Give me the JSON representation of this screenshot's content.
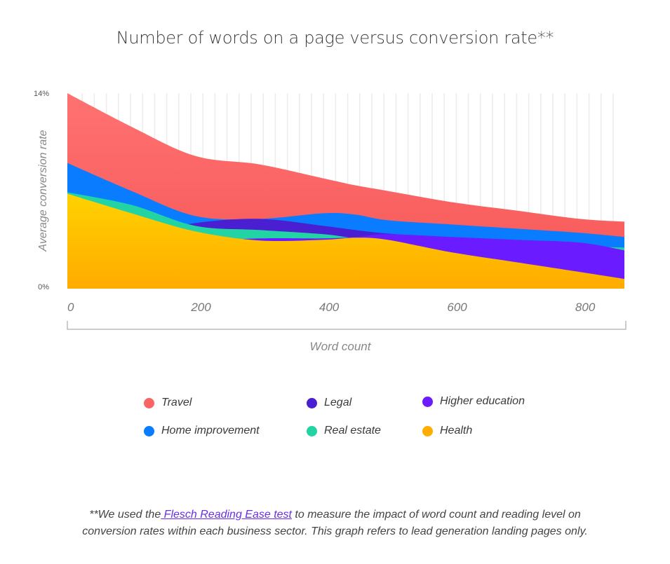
{
  "chart_data": {
    "type": "area",
    "title": "Number of words on a page versus conversion rate**",
    "xlabel": "Word count",
    "ylabel": "Average conversion rate",
    "xlim": [
      0,
      870
    ],
    "ylim": [
      0,
      14
    ],
    "x_ticks": [
      "0",
      "200",
      "400",
      "600",
      "800"
    ],
    "y_ticks": [
      "0%",
      "14%"
    ],
    "grid": "vertical lines",
    "legend_position": "bottom",
    "x": [
      0,
      100,
      200,
      300,
      400,
      450,
      500,
      600,
      700,
      800,
      870
    ],
    "series": [
      {
        "name": "Travel",
        "color": "#fb6565",
        "values": [
          14.0,
          11.6,
          9.5,
          8.9,
          7.9,
          7.4,
          7.0,
          6.2,
          5.6,
          5.0,
          4.8
        ]
      },
      {
        "name": "Home improvement",
        "color": "#0a7cff",
        "values": [
          9.0,
          7.0,
          5.2,
          5.0,
          5.4,
          5.3,
          4.9,
          4.6,
          4.3,
          4.0,
          3.7
        ]
      },
      {
        "name": "Legal",
        "color": "#4a1fd1",
        "values": [
          4.0,
          3.8,
          4.7,
          5.0,
          4.5,
          4.2,
          3.95,
          3.6,
          3.4,
          3.2,
          2.8
        ]
      },
      {
        "name": "Real estate",
        "color": "#22d3a3",
        "values": [
          6.9,
          6.0,
          4.5,
          4.2,
          3.9,
          3.6,
          3.4,
          3.2,
          3.0,
          3.0,
          2.95
        ]
      },
      {
        "name": "Higher education",
        "color": "#6a1bff",
        "values": [
          3.0,
          3.2,
          3.4,
          3.6,
          3.6,
          3.7,
          3.9,
          3.7,
          3.5,
          3.3,
          2.75
        ]
      },
      {
        "name": "Health",
        "color": "#ffb800",
        "values": [
          6.8,
          5.4,
          4.1,
          3.45,
          3.5,
          3.65,
          3.5,
          2.6,
          1.9,
          1.2,
          0.7
        ]
      }
    ]
  },
  "legend": [
    {
      "label": "Travel",
      "color": "#f96464"
    },
    {
      "label": "Legal",
      "color": "#4a1fd1"
    },
    {
      "label": "Higher education",
      "color": "#6a1bff"
    },
    {
      "label": "Home improvement",
      "color": "#0a7cff"
    },
    {
      "label": "Real estate",
      "color": "#22d3a3"
    },
    {
      "label": "Health",
      "color": "#ffad00"
    }
  ],
  "footer": {
    "prefix": "**We used the",
    "link": " Flesch Reading Ease test",
    "suffix": " to measure the impact of word count and reading level on",
    "line2": "conversion rates within each business sector. This graph refers to lead generation landing pages only."
  }
}
